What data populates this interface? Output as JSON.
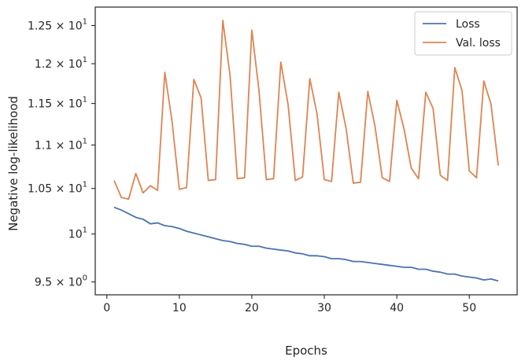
{
  "chart_data": {
    "type": "line",
    "title": "",
    "xlabel": "Epochs",
    "ylabel": "Negative log-likelihood",
    "yscale": "log",
    "xlim": [
      -1.6,
      56.6
    ],
    "ylim": [
      9.37,
      12.75
    ],
    "grid": false,
    "legend": "top-right",
    "x_ticks": [
      0,
      10,
      20,
      30,
      40,
      50
    ],
    "x_tick_labels": [
      "0",
      "10",
      "20",
      "30",
      "40",
      "50"
    ],
    "y_ticks": [
      9.5,
      10,
      10.5,
      11,
      11.5,
      12,
      12.5
    ],
    "y_tick_labels": [
      {
        "mant": "9.5",
        "exp": "0"
      },
      {
        "mant": "",
        "exp": "1"
      },
      {
        "mant": "1.05",
        "exp": "1"
      },
      {
        "mant": "1.1",
        "exp": "1"
      },
      {
        "mant": "1.15",
        "exp": "1"
      },
      {
        "mant": "1.2",
        "exp": "1"
      },
      {
        "mant": "1.25",
        "exp": "1"
      }
    ],
    "times_symbol": "×",
    "ten_label": "10",
    "x": [
      1,
      2,
      3,
      4,
      5,
      6,
      7,
      8,
      9,
      10,
      11,
      12,
      13,
      14,
      15,
      16,
      17,
      18,
      19,
      20,
      21,
      22,
      23,
      24,
      25,
      26,
      27,
      28,
      29,
      30,
      31,
      32,
      33,
      34,
      35,
      36,
      37,
      38,
      39,
      40,
      41,
      42,
      43,
      44,
      45,
      46,
      47,
      48,
      49,
      50,
      51,
      52,
      53,
      54
    ],
    "series": [
      {
        "name": "Loss",
        "color": "#4c72b0",
        "values": [
          10.29,
          10.26,
          10.22,
          10.18,
          10.16,
          10.11,
          10.12,
          10.09,
          10.08,
          10.06,
          10.03,
          10.01,
          9.99,
          9.97,
          9.95,
          9.93,
          9.92,
          9.9,
          9.89,
          9.87,
          9.87,
          9.85,
          9.84,
          9.83,
          9.82,
          9.8,
          9.79,
          9.77,
          9.77,
          9.76,
          9.74,
          9.74,
          9.73,
          9.71,
          9.71,
          9.7,
          9.69,
          9.68,
          9.67,
          9.66,
          9.65,
          9.65,
          9.63,
          9.63,
          9.61,
          9.6,
          9.58,
          9.58,
          9.56,
          9.55,
          9.54,
          9.52,
          9.53,
          9.51
        ]
      },
      {
        "name": "Val. loss",
        "color": "#dd8452",
        "values": [
          10.59,
          10.4,
          10.38,
          10.67,
          10.45,
          10.53,
          10.48,
          11.89,
          11.28,
          10.49,
          10.51,
          11.8,
          11.57,
          10.59,
          10.6,
          12.57,
          11.85,
          10.61,
          10.62,
          12.44,
          11.65,
          10.6,
          10.61,
          12.02,
          11.49,
          10.59,
          10.63,
          11.81,
          11.37,
          10.6,
          10.58,
          11.64,
          11.2,
          10.56,
          10.57,
          11.65,
          11.22,
          10.62,
          10.58,
          11.54,
          11.19,
          10.73,
          10.61,
          11.64,
          11.44,
          10.65,
          10.59,
          11.95,
          11.66,
          10.7,
          10.62,
          11.78,
          11.49,
          10.76
        ]
      }
    ]
  }
}
